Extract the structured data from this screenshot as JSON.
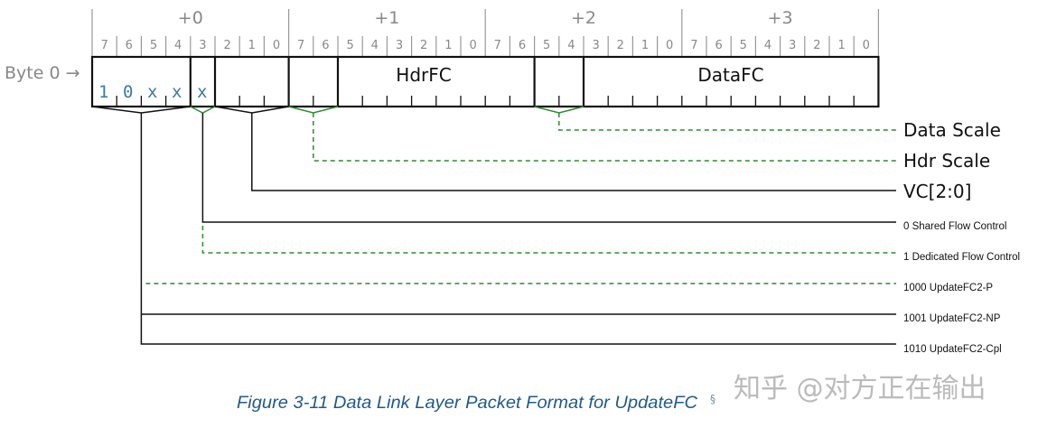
{
  "row_label": "Byte 0 →",
  "bytes": [
    "+0",
    "+1",
    "+2",
    "+3"
  ],
  "bit_labels": [
    "7",
    "6",
    "5",
    "4",
    "3",
    "2",
    "1",
    "0"
  ],
  "fields": {
    "type_bits": [
      "1",
      "0",
      "x",
      "x"
    ],
    "bit3": "x",
    "hdrfc": "HdrFC",
    "datafc": "DataFC"
  },
  "labels": {
    "data_scale": "Data Scale",
    "hdr_scale": "Hdr Scale",
    "vc": "VC[2:0]",
    "shared": "0 Shared Flow Control",
    "dedicated": "1 Dedicated Flow Control",
    "p": "1000 UpdateFC2-P",
    "np": "1001 UpdateFC2-NP",
    "cpl": "1010 UpdateFC2-Cpl"
  },
  "colors": {
    "green": "#2e8b2e",
    "value_blue": "#3a7aa8",
    "caption_blue": "#1f5a8c"
  },
  "caption": "Figure 3-11 Data Link Layer Packet Format for UpdateFC",
  "caption_mark": "§",
  "watermark": "知乎 @对方正在输出"
}
